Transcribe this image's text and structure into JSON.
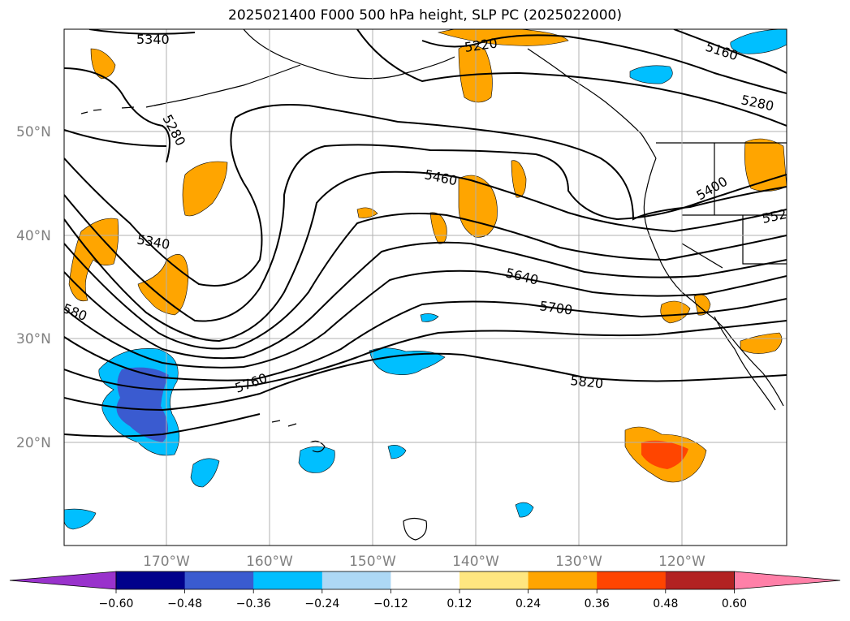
{
  "title": "2025021400 F000 500 hPa height, SLP PC (2025022000)",
  "lat_labels": [
    "50°N",
    "40°N",
    "30°N",
    "20°N"
  ],
  "lon_labels": [
    "170°W",
    "160°W",
    "150°W",
    "140°W",
    "130°W",
    "120°W"
  ],
  "contour_labels": [
    "5340",
    "5220",
    "5160",
    "5280",
    "5280",
    "5460",
    "5400",
    "552",
    "5340",
    "580",
    "5640",
    "5700",
    "5760",
    "5820"
  ],
  "colorbar": {
    "ticks": [
      "−0.60",
      "−0.48",
      "−0.36",
      "−0.24",
      "−0.12",
      "0.12",
      "0.24",
      "0.36",
      "0.48",
      "0.60"
    ],
    "colors": [
      "#9932cc",
      "#00008b",
      "#3a5bd0",
      "#00bfff",
      "#add8f5",
      "#ffffff",
      "#ffe680",
      "#ffa500",
      "#ff4500",
      "#b22222",
      "#ff80a8"
    ]
  },
  "colors": {
    "neg_dark": "#3a5bd0",
    "neg_mid": "#00bfff",
    "neg_light": "#add8f5",
    "pos_light": "#ffe680",
    "pos_mid": "#ffa500",
    "pos_strong": "#ff4500"
  }
}
